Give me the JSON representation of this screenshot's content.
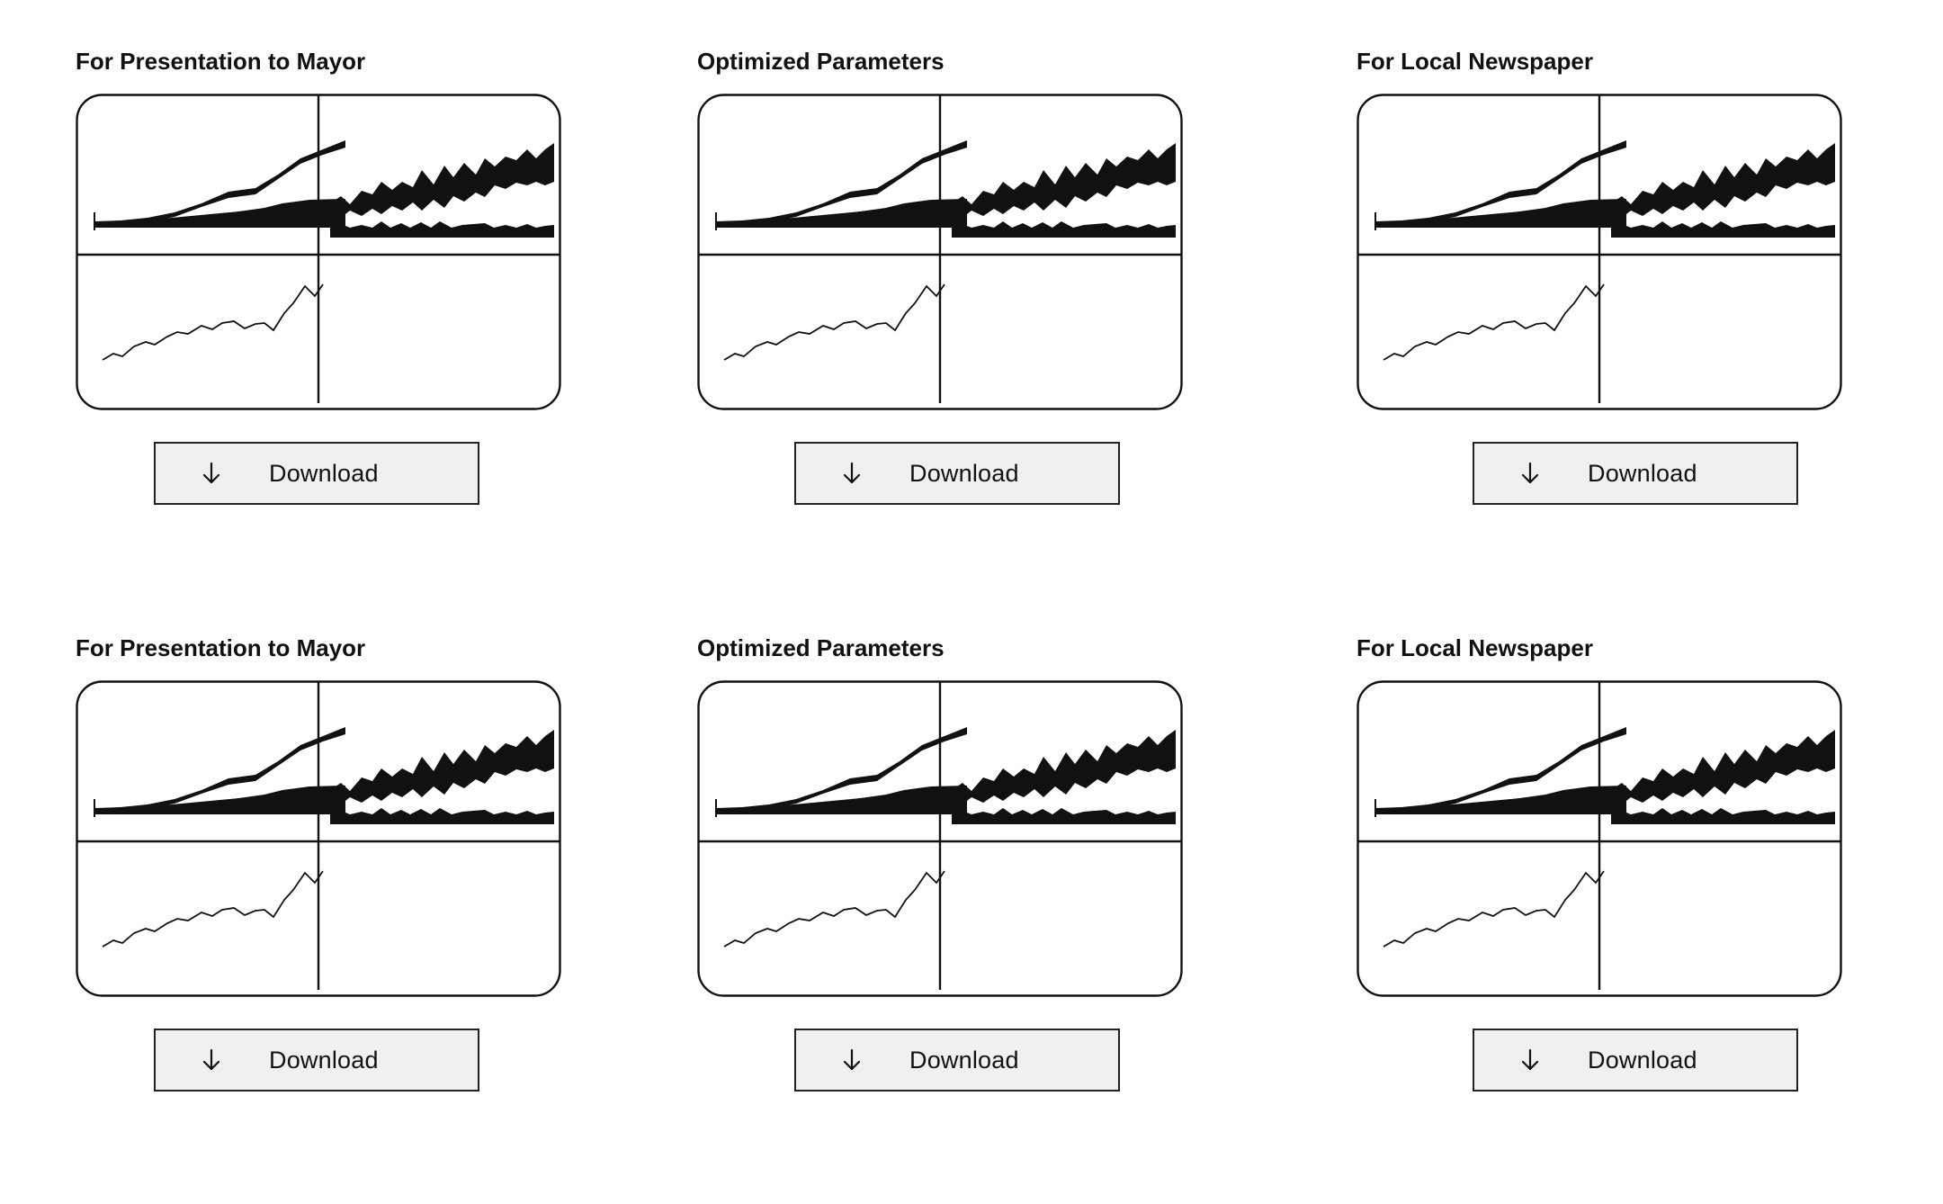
{
  "download_icon": "arrow-down-icon",
  "cards": [
    {
      "title": "For Presentation to Mayor",
      "button_label": "Download"
    },
    {
      "title": "Optimized Parameters",
      "button_label": "Download"
    },
    {
      "title": "For Local Newspaper",
      "button_label": "Download"
    },
    {
      "title": "For Presentation to Mayor",
      "button_label": "Download"
    },
    {
      "title": "Optimized Parameters",
      "button_label": "Download"
    },
    {
      "title": "For Local Newspaper",
      "button_label": "Download"
    }
  ]
}
